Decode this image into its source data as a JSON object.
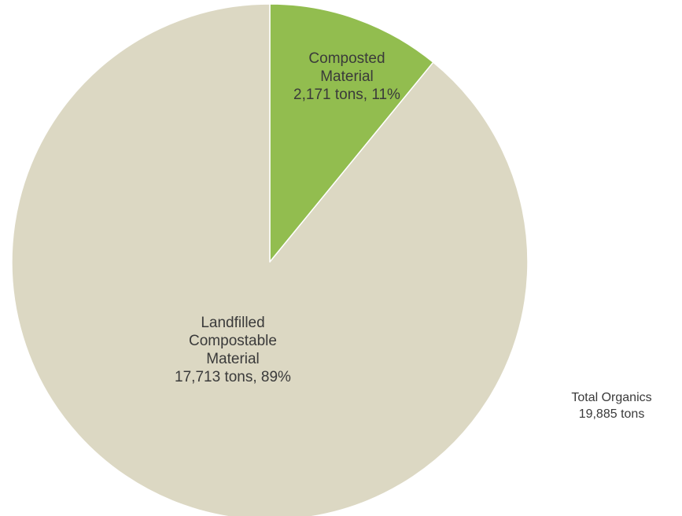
{
  "chart_data": {
    "type": "pie",
    "start_angle_deg": 0,
    "direction": "clockwise",
    "slices": [
      {
        "name": "Composted Material",
        "label_lines": [
          "Composted",
          "Material",
          "2,171 tons, 11%"
        ],
        "value": 2171,
        "percent": 11,
        "color": "#92bd4f"
      },
      {
        "name": "Landfilled Compostable Material",
        "label_lines": [
          "Landfilled",
          "Compostable",
          "Material",
          "17,713 tons, 89%"
        ],
        "value": 17713,
        "percent": 89,
        "color": "#dcd8c3"
      }
    ],
    "total_label": {
      "line1": "Total Organics",
      "line2": "19,885 tons"
    }
  }
}
